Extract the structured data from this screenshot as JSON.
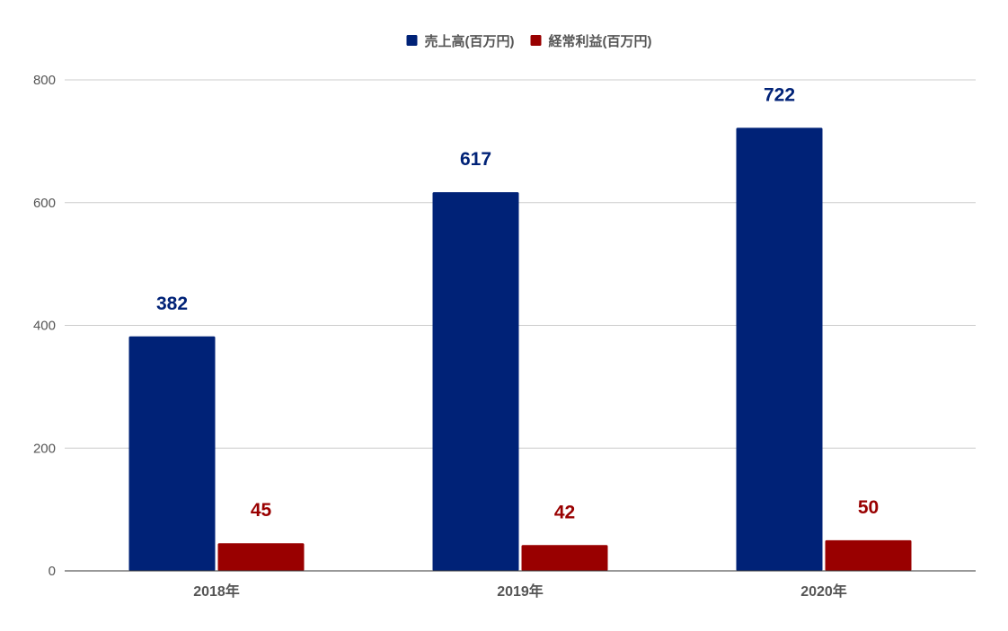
{
  "chart_data": {
    "type": "bar",
    "categories": [
      "2018年",
      "2019年",
      "2020年"
    ],
    "series": [
      {
        "name": "売上高(百万円)",
        "color": "#002277",
        "values": [
          382,
          617,
          722
        ]
      },
      {
        "name": "経常利益(百万円)",
        "color": "#990000",
        "values": [
          45,
          42,
          50
        ]
      }
    ],
    "ylim": [
      0,
      800
    ],
    "yticks": [
      0,
      200,
      400,
      600,
      800
    ],
    "grid": true,
    "legend_position": "top-center",
    "data_labels": true
  }
}
